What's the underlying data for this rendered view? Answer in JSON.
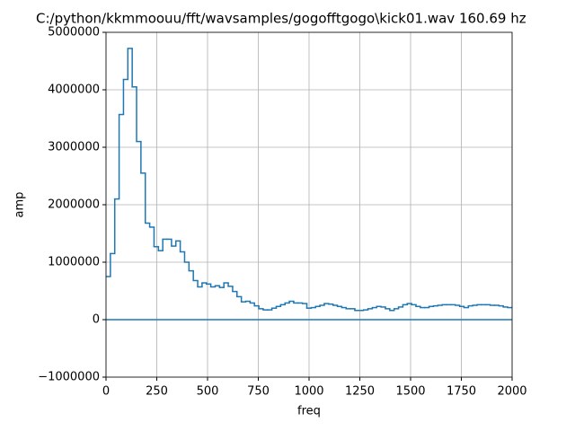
{
  "chart_data": {
    "type": "step",
    "title": "C:/python/kkmmoouu/fft/wavsamples/gogofftgogo\\kick01.wav 160.69 hz",
    "xlabel": "freq",
    "ylabel": "amp",
    "x": [
      0,
      21.5,
      43,
      64.5,
      86,
      107.5,
      129,
      150.5,
      172,
      193.5,
      215,
      236.5,
      258,
      279.5,
      301,
      322.5,
      344,
      365.5,
      387,
      408.5,
      430,
      451.5,
      473,
      494.5,
      516,
      537.5,
      559,
      580.5,
      602,
      623.5,
      645,
      666.5,
      688,
      709.5,
      731,
      752.5,
      774,
      795.5,
      817,
      838.5,
      860,
      881.5,
      903,
      924.5,
      946,
      967.5,
      989,
      1010.5,
      1032,
      1053.5,
      1075,
      1096.5,
      1118,
      1139.5,
      1161,
      1182.5,
      1204,
      1225.5,
      1247,
      1268.5,
      1290,
      1311.5,
      1333,
      1354.5,
      1376,
      1397.5,
      1419,
      1440.5,
      1462,
      1483.5,
      1505,
      1526.5,
      1548,
      1569.5,
      1591,
      1612.5,
      1634,
      1655.5,
      1677,
      1698.5,
      1720,
      1741.5,
      1763,
      1784.5,
      1806,
      1827.5,
      1849,
      1870.5,
      1892,
      1913.5,
      1935,
      1956.5,
      1978
    ],
    "values": [
      750000,
      1150000,
      2100000,
      3570000,
      4180000,
      4720000,
      4050000,
      3100000,
      2550000,
      1680000,
      1610000,
      1270000,
      1200000,
      1400000,
      1400000,
      1280000,
      1370000,
      1180000,
      1000000,
      850000,
      680000,
      570000,
      640000,
      620000,
      570000,
      590000,
      560000,
      640000,
      580000,
      490000,
      400000,
      310000,
      320000,
      290000,
      240000,
      190000,
      170000,
      170000,
      200000,
      230000,
      260000,
      290000,
      320000,
      290000,
      290000,
      280000,
      200000,
      210000,
      230000,
      250000,
      280000,
      270000,
      250000,
      230000,
      210000,
      190000,
      190000,
      160000,
      160000,
      170000,
      190000,
      210000,
      230000,
      220000,
      190000,
      160000,
      190000,
      220000,
      260000,
      280000,
      260000,
      230000,
      210000,
      210000,
      230000,
      240000,
      250000,
      260000,
      260000,
      260000,
      250000,
      230000,
      210000,
      240000,
      250000,
      260000,
      260000,
      260000,
      250000,
      250000,
      240000,
      220000,
      210000
    ],
    "color": "#1f77b4",
    "axhline": 0,
    "xlim": [
      0,
      2000
    ],
    "xticks": [
      0,
      250,
      500,
      750,
      1000,
      1250,
      1500,
      1750,
      2000
    ],
    "ylim": [
      -1000000,
      5000000
    ],
    "yticks": [
      {
        "value": -1000000,
        "label": "−1000000"
      },
      0,
      1000000,
      2000000,
      3000000,
      4000000,
      5000000
    ],
    "grid": true
  }
}
